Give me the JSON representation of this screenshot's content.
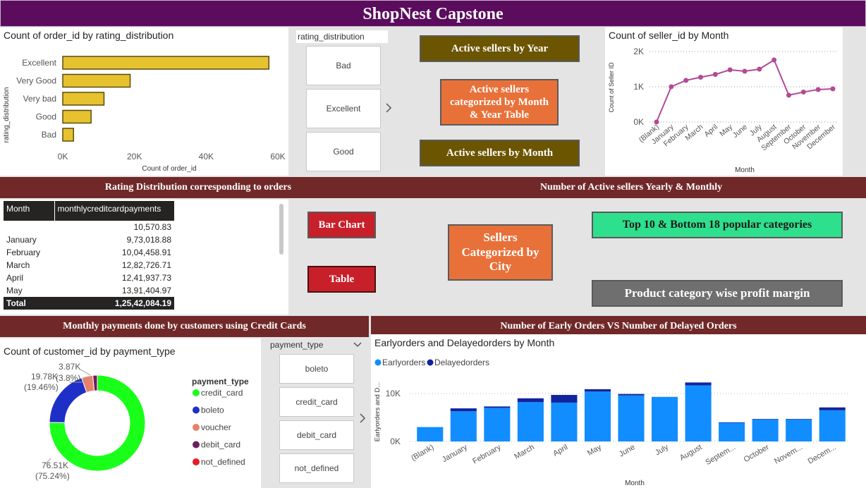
{
  "header": {
    "title": "ShopNest Capstone"
  },
  "rating_chart": {
    "title": "Count of order_id by rating_distribution",
    "ylabel": "rating_distribution",
    "xlabel": "Count of order_id"
  },
  "rating_slicer": {
    "title": "rating_distribution",
    "items": [
      "Bad",
      "Excellent",
      "Good"
    ],
    "more_icon": "chevron-right-icon"
  },
  "nav_buttons_top": {
    "active_by_year": "Active sellers by Year",
    "active_by_month_year": "Active sellers categorized by Month & Year Table",
    "active_by_month": "Active sellers by Month"
  },
  "seller_chart": {
    "title": "Count of seller_id by Month",
    "ylabel": "Count of Seller ID",
    "xlabel": "Month"
  },
  "section_bars": {
    "rating": "Rating Distribution corresponding to orders",
    "active_sellers": "Number of Active sellers Yearly & Monthly",
    "payments": "Monthly payments done by customers using Credit Cards",
    "early_delayed": "Number of Early Orders VS Number of Delayed Orders"
  },
  "payments_table": {
    "columns": [
      "Month",
      "monthlycreditcardpayments"
    ],
    "rows": [
      [
        "",
        "10,570.83"
      ],
      [
        "January",
        "9,73,018.88"
      ],
      [
        "February",
        "10,04,458.91"
      ],
      [
        "March",
        "12,82,726.71"
      ],
      [
        "April",
        "12,41,937.73"
      ],
      [
        "May",
        "13,91,404.97"
      ]
    ],
    "total": [
      "Total",
      "1,25,42,084.19"
    ]
  },
  "nav_buttons_mid": {
    "bar_chart": "Bar Chart",
    "table": "Table",
    "sellers_city": "Sellers Categorized by City",
    "top_bottom": "Top 10 & Bottom 18 popular categories",
    "profit_margin": "Product category wise profit margin"
  },
  "payment_chart": {
    "title": "Count of customer_id by payment_type",
    "legend_title": "payment_type",
    "legend": [
      "credit_card",
      "boleto",
      "voucher",
      "debit_card",
      "not_defined"
    ],
    "labels": {
      "credit": [
        "76.51K",
        "(75.24%)"
      ],
      "boleto": [
        "19.78K",
        "(19.46%)"
      ],
      "voucher": [
        "3.87K",
        "(3.8%)"
      ]
    }
  },
  "payment_slicer": {
    "title": "payment_type",
    "items": [
      "boleto",
      "credit_card",
      "debit_card",
      "not_defined"
    ],
    "dropdown_icon": "chevron-down-icon",
    "more_icon": "chevron-right-icon"
  },
  "orders_chart": {
    "title": "Earlyorders and Delayedorders by Month",
    "ylabel": "Earlyorders and D...",
    "xlabel": "Month",
    "legend": [
      "Earlyorders",
      "Delayedorders"
    ]
  },
  "colors": {
    "banner": "#5b0c5d",
    "section_bar": "#712828",
    "bar_gold": "#e6c22f",
    "line_purple": "#b24a97",
    "btn_olive": "#6b5500",
    "btn_orange": "#e8713a",
    "btn_red": "#c8202a",
    "btn_green": "#2ee08d",
    "btn_gray": "#6f6f6f",
    "early": "#118dff",
    "delayed": "#12239e",
    "credit_card": "#1aff1a",
    "boleto": "#1e2fc8",
    "voucher": "#e8816a",
    "debit_card": "#6b1f5e",
    "not_defined": "#e8192c"
  },
  "chart_data": [
    {
      "type": "bar",
      "orientation": "horizontal",
      "title": "Count of order_id by rating_distribution",
      "xlabel": "Count of order_id",
      "ylabel": "rating_distribution",
      "categories": [
        "Excellent",
        "Very Good",
        "Very bad",
        "Good",
        "Bad"
      ],
      "values": [
        57500,
        18800,
        11500,
        7900,
        3000
      ],
      "xticks": [
        "0K",
        "20K",
        "40K",
        "60K"
      ],
      "xlim": [
        0,
        60000
      ]
    },
    {
      "type": "line",
      "title": "Count of seller_id by Month",
      "xlabel": "Month",
      "ylabel": "Count of Seller ID",
      "categories": [
        "(Blank)",
        "January",
        "February",
        "March",
        "April",
        "May",
        "June",
        "July",
        "August",
        "September",
        "October",
        "November",
        "December"
      ],
      "values": [
        0,
        1000,
        1180,
        1270,
        1350,
        1480,
        1440,
        1500,
        1760,
        760,
        850,
        920,
        940
      ],
      "yticks": [
        "0K",
        "1K",
        "2K"
      ],
      "ylim": [
        0,
        2000
      ],
      "grid": true
    },
    {
      "type": "pie",
      "title": "Count of customer_id by payment_type",
      "categories": [
        "credit_card",
        "boleto",
        "voucher",
        "debit_card",
        "not_defined"
      ],
      "values": [
        76510,
        19780,
        3870,
        1530,
        3
      ]
    },
    {
      "type": "bar",
      "stacked": true,
      "title": "Earlyorders and Delayedorders by Month",
      "xlabel": "Month",
      "ylabel": "Earlyorders and D...",
      "categories": [
        "(Blank)",
        "January",
        "February",
        "March",
        "April",
        "May",
        "June",
        "July",
        "August",
        "Septem...",
        "October",
        "Novem...",
        "Decem..."
      ],
      "series": [
        {
          "name": "Earlyorders",
          "values": [
            3000,
            6300,
            7000,
            8200,
            8100,
            10400,
            9600,
            9300,
            11700,
            3900,
            4600,
            4600,
            6500
          ]
        },
        {
          "name": "Delayedorders",
          "values": [
            0,
            600,
            300,
            800,
            1600,
            500,
            300,
            0,
            600,
            100,
            100,
            100,
            600
          ]
        }
      ],
      "yticks": [
        "0K",
        "10K"
      ],
      "ylim": [
        0,
        12500
      ],
      "legend_position": "top-left"
    }
  ]
}
